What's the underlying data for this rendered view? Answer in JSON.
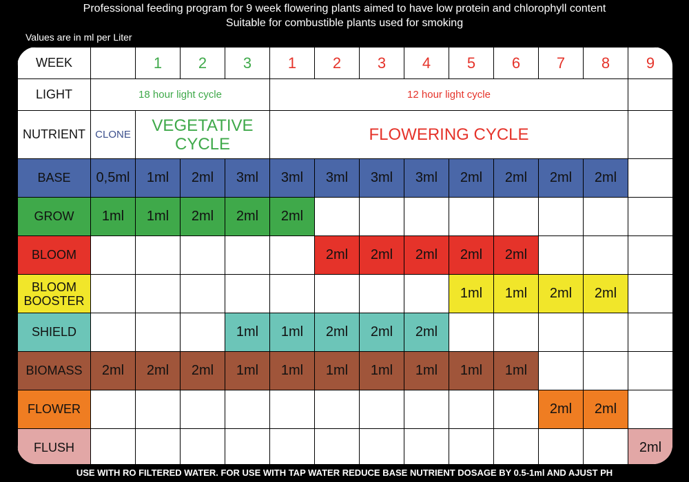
{
  "header": {
    "line1": "Professional feeding program for 9 week flowering plants aimed to have low protein and chlorophyll content",
    "line2": "Suitable for combustible plants used for smoking"
  },
  "subnote": "Values are in ml per Liter",
  "footer": "USE WITH RO FILTERED WATER. FOR USE WITH TAP WATER REDUCE BASE NUTRIENT DOSAGE BY 0.5-1ml AND AJUST PH",
  "table": {
    "week_label": "WEEK",
    "light_label": "LIGHT",
    "nutrient_label": "NUTRIENT",
    "clone_label": "CLONE",
    "veg_weeks": [
      "1",
      "2",
      "3"
    ],
    "flower_weeks": [
      "1",
      "2",
      "3",
      "4",
      "5",
      "6",
      "7",
      "8",
      "9"
    ],
    "veg_light": "18 hour light cycle",
    "flower_light": "12 hour light cycle",
    "veg_cycle_line1": "VEGETATIVE",
    "veg_cycle_line2": "CYCLE",
    "flower_cycle": "FLOWERING CYCLE",
    "rows": [
      {
        "label_lines": [
          "BASE"
        ],
        "color": "#4a67a8",
        "values": [
          "0,5ml",
          "1ml",
          "2ml",
          "3ml",
          "3ml",
          "3ml",
          "3ml",
          "3ml",
          "2ml",
          "2ml",
          "2ml",
          "2ml",
          ""
        ]
      },
      {
        "label_lines": [
          "GROW"
        ],
        "color": "#3fa94a",
        "values": [
          "1ml",
          "1ml",
          "2ml",
          "2ml",
          "2ml",
          "",
          "",
          "",
          "",
          "",
          "",
          "",
          ""
        ]
      },
      {
        "label_lines": [
          "BLOOM"
        ],
        "color": "#e5332a",
        "values": [
          "",
          "",
          "",
          "",
          "",
          "2ml",
          "2ml",
          "2ml",
          "2ml",
          "2ml",
          "",
          "",
          ""
        ]
      },
      {
        "label_lines": [
          "BLOOM",
          "BOOSTER"
        ],
        "color": "#f1e62a",
        "values": [
          "",
          "",
          "",
          "",
          "",
          "",
          "",
          "",
          "1ml",
          "1ml",
          "2ml",
          "2ml",
          ""
        ]
      },
      {
        "label_lines": [
          "SHIELD"
        ],
        "color": "#6cc5b8",
        "values": [
          "",
          "",
          "",
          "1ml",
          "1ml",
          "2ml",
          "2ml",
          "2ml",
          "",
          "",
          "",
          "",
          ""
        ]
      },
      {
        "label_lines": [
          "BIOMASS"
        ],
        "color": "#a0553a",
        "values": [
          "2ml",
          "2ml",
          "2ml",
          "1ml",
          "1ml",
          "1ml",
          "1ml",
          "1ml",
          "1ml",
          "1ml",
          "",
          "",
          ""
        ]
      },
      {
        "label_lines": [
          "FLOWER"
        ],
        "color": "#ef7d22",
        "values": [
          "",
          "",
          "",
          "",
          "",
          "",
          "",
          "",
          "",
          "",
          "2ml",
          "2ml",
          ""
        ]
      },
      {
        "label_lines": [
          "FLUSH"
        ],
        "color": "#e2a7a6",
        "values": [
          "",
          "",
          "",
          "",
          "",
          "",
          "",
          "",
          "",
          "",
          "",
          "",
          "2ml"
        ]
      }
    ]
  },
  "chart_data": {
    "type": "table",
    "columns": [
      "CLONE",
      "1",
      "2",
      "3",
      "1",
      "2",
      "3",
      "4",
      "5",
      "6",
      "7",
      "8",
      "9"
    ],
    "series": [
      {
        "name": "BASE",
        "values": [
          "0,5ml",
          "1ml",
          "2ml",
          "3ml",
          "3ml",
          "3ml",
          "3ml",
          "3ml",
          "2ml",
          "2ml",
          "2ml",
          "2ml",
          ""
        ]
      },
      {
        "name": "GROW",
        "values": [
          "1ml",
          "1ml",
          "2ml",
          "2ml",
          "2ml",
          "",
          "",
          "",
          "",
          "",
          "",
          "",
          ""
        ]
      },
      {
        "name": "BLOOM",
        "values": [
          "",
          "",
          "",
          "",
          "",
          "2ml",
          "2ml",
          "2ml",
          "2ml",
          "2ml",
          "",
          "",
          ""
        ]
      },
      {
        "name": "BLOOM BOOSTER",
        "values": [
          "",
          "",
          "",
          "",
          "",
          "",
          "",
          "",
          "1ml",
          "1ml",
          "2ml",
          "2ml",
          ""
        ]
      },
      {
        "name": "SHIELD",
        "values": [
          "",
          "",
          "",
          "1ml",
          "1ml",
          "2ml",
          "2ml",
          "2ml",
          "",
          "",
          "",
          "",
          ""
        ]
      },
      {
        "name": "BIOMASS",
        "values": [
          "2ml",
          "2ml",
          "2ml",
          "1ml",
          "1ml",
          "1ml",
          "1ml",
          "1ml",
          "1ml",
          "1ml",
          "",
          "",
          ""
        ]
      },
      {
        "name": "FLOWER",
        "values": [
          "",
          "",
          "",
          "",
          "",
          "",
          "",
          "",
          "",
          "",
          "2ml",
          "2ml",
          ""
        ]
      },
      {
        "name": "FLUSH",
        "values": [
          "",
          "",
          "",
          "",
          "",
          "",
          "",
          "",
          "",
          "",
          "",
          "",
          "2ml"
        ]
      }
    ]
  }
}
